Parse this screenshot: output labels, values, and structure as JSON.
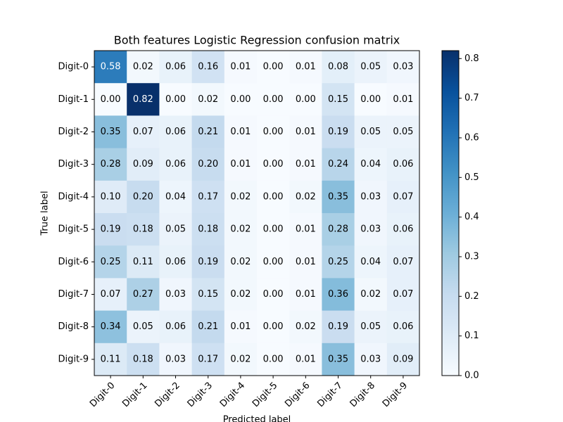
{
  "chart_data": {
    "type": "heatmap",
    "title": "Both features Logistic Regression confusion matrix",
    "xlabel": "Predicted label",
    "ylabel": "True label",
    "x_categories": [
      "Digit-0",
      "Digit-1",
      "Digit-2",
      "Digit-3",
      "Digit-4",
      "Digit-5",
      "Digit-6",
      "Digit-7",
      "Digit-8",
      "Digit-9"
    ],
    "y_categories": [
      "Digit-0",
      "Digit-1",
      "Digit-2",
      "Digit-3",
      "Digit-4",
      "Digit-5",
      "Digit-6",
      "Digit-7",
      "Digit-8",
      "Digit-9"
    ],
    "values": [
      [
        0.58,
        0.02,
        0.06,
        0.16,
        0.01,
        0,
        0.01,
        0.08,
        0.05,
        0.03
      ],
      [
        0,
        0.82,
        0,
        0.02,
        0,
        0,
        0,
        0.15,
        0,
        0.01
      ],
      [
        0.35,
        0.07,
        0.06,
        0.21,
        0.01,
        0,
        0.01,
        0.19,
        0.05,
        0.05
      ],
      [
        0.28,
        0.09,
        0.06,
        0.2,
        0.01,
        0,
        0.01,
        0.24,
        0.04,
        0.06
      ],
      [
        0.1,
        0.2,
        0.04,
        0.17,
        0.02,
        0,
        0.02,
        0.35,
        0.03,
        0.07
      ],
      [
        0.19,
        0.18,
        0.05,
        0.18,
        0.02,
        0,
        0.01,
        0.28,
        0.03,
        0.06
      ],
      [
        0.25,
        0.11,
        0.06,
        0.19,
        0.02,
        0,
        0.01,
        0.25,
        0.04,
        0.07
      ],
      [
        0.07,
        0.27,
        0.03,
        0.15,
        0.02,
        0,
        0.01,
        0.36,
        0.02,
        0.07
      ],
      [
        0.34,
        0.05,
        0.06,
        0.21,
        0.01,
        0,
        0.02,
        0.19,
        0.05,
        0.06
      ],
      [
        0.11,
        0.18,
        0.03,
        0.17,
        0.02,
        0,
        0.01,
        0.35,
        0.03,
        0.09
      ]
    ],
    "value_labels": [
      [
        "0.58",
        "0.02",
        "0.06",
        "0.16",
        "0.01",
        "0.00",
        "0.01",
        "0.08",
        "0.05",
        "0.03"
      ],
      [
        "0.00",
        "0.82",
        "0.00",
        "0.02",
        "0.00",
        "0.00",
        "0.00",
        "0.15",
        "0.00",
        "0.01"
      ],
      [
        "0.35",
        "0.07",
        "0.06",
        "0.21",
        "0.01",
        "0.00",
        "0.01",
        "0.19",
        "0.05",
        "0.05"
      ],
      [
        "0.28",
        "0.09",
        "0.06",
        "0.20",
        "0.01",
        "0.00",
        "0.01",
        "0.24",
        "0.04",
        "0.06"
      ],
      [
        "0.10",
        "0.20",
        "0.04",
        "0.17",
        "0.02",
        "0.00",
        "0.02",
        "0.35",
        "0.03",
        "0.07"
      ],
      [
        "0.19",
        "0.18",
        "0.05",
        "0.18",
        "0.02",
        "0.00",
        "0.01",
        "0.28",
        "0.03",
        "0.06"
      ],
      [
        "0.25",
        "0.11",
        "0.06",
        "0.19",
        "0.02",
        "0.00",
        "0.01",
        "0.25",
        "0.04",
        "0.07"
      ],
      [
        "0.07",
        "0.27",
        "0.03",
        "0.15",
        "0.02",
        "0.00",
        "0.01",
        "0.36",
        "0.02",
        "0.07"
      ],
      [
        "0.34",
        "0.05",
        "0.06",
        "0.21",
        "0.01",
        "0.00",
        "0.02",
        "0.19",
        "0.05",
        "0.06"
      ],
      [
        "0.11",
        "0.18",
        "0.03",
        "0.17",
        "0.02",
        "0.00",
        "0.01",
        "0.35",
        "0.03",
        "0.09"
      ]
    ],
    "colormap": "Blues",
    "clim": [
      0,
      0.82
    ],
    "colorbar_ticks": [
      {
        "value": 0,
        "label": "0.0"
      },
      0.1,
      0.2,
      0.3,
      0.4,
      0.5,
      0.6,
      0.7,
      0.8
    ]
  }
}
